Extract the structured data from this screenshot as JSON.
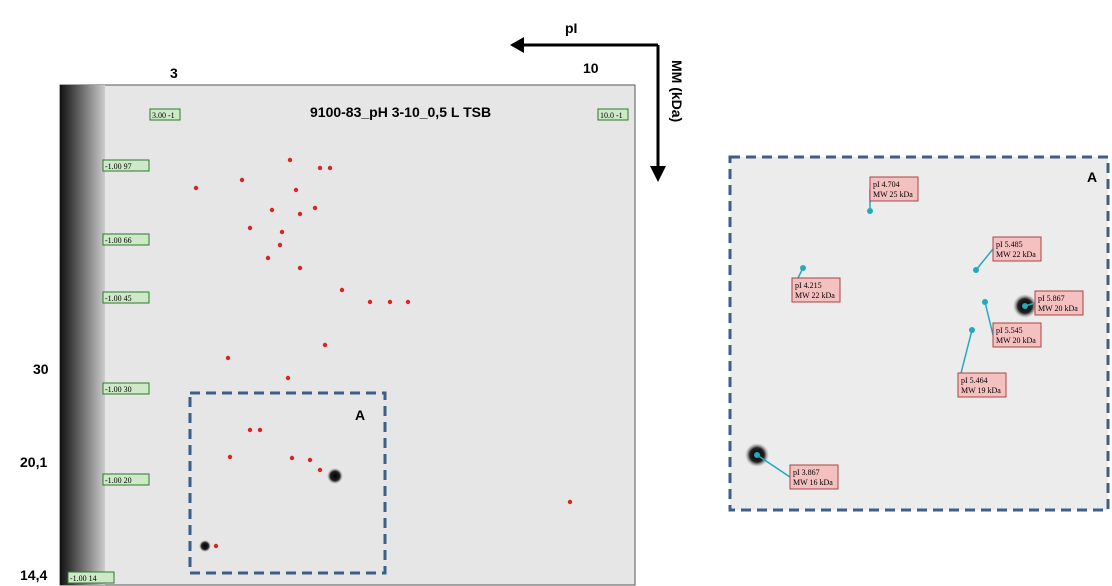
{
  "axes": {
    "pi_label": "pI",
    "mm_label": "MM (kDa)"
  },
  "gel": {
    "title": "9100-83_pH 3-10_0,5 L TSB",
    "ph_start": "3",
    "ph_end": "10",
    "ph_markers": [
      "3.00 -1",
      "10.0 -1"
    ],
    "mw_markers": [
      "-1.00 97",
      "-1.00 66",
      "-1.00 45",
      "-1.00 30",
      "-1.00 20",
      "-1.00 14"
    ],
    "mw_scale": [
      "30",
      "20,1",
      "14,4"
    ],
    "region_label": "A"
  },
  "inset": {
    "label": "A",
    "spots": [
      {
        "pi": "pI 4.704",
        "mw": "MW 25 kDa"
      },
      {
        "pi": "pI 5.485",
        "mw": "MW 22 kDa"
      },
      {
        "pi": "pI 4.215",
        "mw": "MW 22 kDa"
      },
      {
        "pi": "pI 5.867",
        "mw": "MW 20 kDa"
      },
      {
        "pi": "pI 5.545",
        "mw": "MW 20 kDa"
      },
      {
        "pi": "pI 5.464",
        "mw": "MW 19 kDa"
      },
      {
        "pi": "pI 3.867",
        "mw": "MW 16 kDa"
      }
    ]
  }
}
